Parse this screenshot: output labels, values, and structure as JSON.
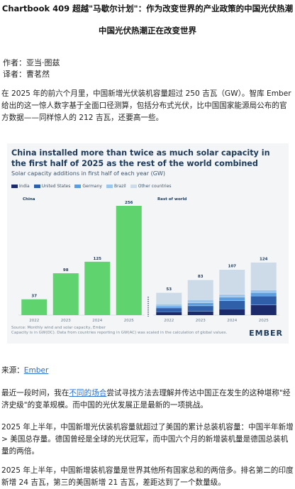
{
  "article": {
    "title": "Chartbook 409 超越\"马歇尔计划\"：作为改变世界的产业政策的中国光伏热潮",
    "subtitle": "中国光伏热潮正在改变世界",
    "author": "作者：亚当·图兹",
    "translator": "译者：曹茗然",
    "para1": "在 2025 年的前六个月里，中国新增光伏装机容量超过 250 吉瓦（GW）。智库 Ember 给出的这一惊人数字基于全面口径测算，包括分布式光伏，比中国国家能源局公布的官方数据——同样惊人的 212 吉瓦，还要高一些。",
    "source_label": "来源：",
    "source_link": "Ember",
    "para2_before": "最近一段时间，我在",
    "para2_link": "不同的场合",
    "para2_after": "尝试寻找方法去理解并传达中国正在发生的这种堪称\"经济史级\"的变革规模。而中国的光伏发展正是最新的一项挑战。",
    "para3": "2025 年上半年，中国新增光伏装机容量就超过了美国的累计总装机容量：中国半年新增 > 美国总存量。德国曾经是全球的光伏冠军，而中国六个月的新增装机量是德国总装机量的两倍。",
    "para4": "2025 年上半年，中国新增装机容量是世界其他所有国家总和的两倍多。排名第二的印度新增 24 吉瓦，第三的美国新增 21 吉瓦，差距达到了一个数量级。"
  },
  "figure": {
    "title": "China installed more than twice as much solar capacity in the first half of 2025 as the rest of the world combined",
    "subtitle": "Solar capacity additions in first half of each year (GW)",
    "source": "Source: Monthly wind and solar capacity, Ember",
    "note": "Capacity is in GW(DC). Data from countries reporting in GW(AC) was scaled in the calculation of global values.",
    "logo": "EMBER"
  },
  "chart_data": {
    "type": "bar",
    "title": "China installed more than twice as much solar capacity in the first half of 2025 as the rest of the world combined",
    "subtitle": "Solar capacity additions in first half of each year (GW)",
    "ylabel": "",
    "xlabel": "",
    "ylim": [
      0,
      256
    ],
    "grid": false,
    "legend_position": "top-left",
    "panels": [
      {
        "name": "China",
        "categories": [
          "2022",
          "2023",
          "2024",
          "2025"
        ],
        "totals": [
          37,
          98,
          125,
          256
        ],
        "color": "#5fd36e"
      },
      {
        "name": "Rest of world",
        "categories": [
          "2022",
          "2023",
          "2024",
          "2025"
        ],
        "totals": [
          53,
          83,
          107,
          124
        ],
        "stack_order_bottom_to_top": [
          "India",
          "United States",
          "Germany",
          "Brazil",
          "Other countries"
        ],
        "series": [
          {
            "name": "India",
            "values": [
              8,
              9,
              15,
              24
            ]
          },
          {
            "name": "United States",
            "values": [
              9,
              13,
              19,
              21
            ]
          },
          {
            "name": "Germany",
            "values": [
              4,
              7,
              8,
              8
            ]
          },
          {
            "name": "Brazil",
            "values": [
              5,
              7,
              7,
              6
            ]
          },
          {
            "name": "Other countries",
            "values": [
              27,
              47,
              58,
              65
            ]
          }
        ]
      }
    ],
    "legend": [
      "India",
      "United States",
      "Germany",
      "Brazil",
      "Other countries"
    ],
    "colors": {
      "India": "#1b2a6b",
      "United States": "#2e5fa8",
      "Germany": "#5a9ee0",
      "Brazil": "#9cc6ee",
      "Other countries": "#cddbe8",
      "China": "#5fd36e"
    }
  }
}
